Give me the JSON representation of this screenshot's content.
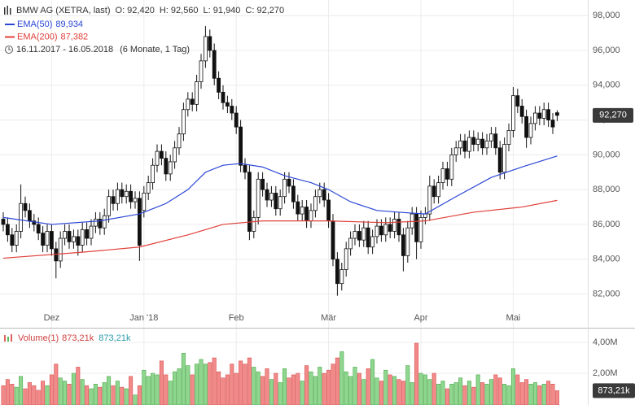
{
  "chart_data": {
    "type": "candlestick",
    "header": {
      "title": "BMW AG (XETRA, last)",
      "ohlc": [
        "O: 92,420",
        "H: 92,560",
        "L: 91,940",
        "C: 92,270"
      ],
      "range": "16.11.2017 - 16.05.2018",
      "period": "(6 Monate, 1 Tag)"
    },
    "xticks": [
      {
        "value": 11,
        "label": "Dez"
      },
      {
        "value": 32,
        "label": "Jan '18"
      },
      {
        "value": 53,
        "label": "Feb"
      },
      {
        "value": 74,
        "label": "Mär"
      },
      {
        "value": 95,
        "label": "Apr"
      },
      {
        "value": 116,
        "label": "Mai"
      }
    ],
    "open": [
      86.3,
      86.0,
      85.4,
      84.8,
      85.6,
      87.2,
      86.8,
      86.2,
      86.0,
      85.5,
      84.8,
      85.6,
      84.6,
      83.9,
      85.2,
      85.6,
      85.0,
      85.3,
      84.8,
      85.7,
      85.2,
      85.9,
      86.3,
      85.8,
      86.5,
      87.6,
      87.2,
      88.0,
      87.6,
      87.9,
      87.3,
      87.5,
      86.8,
      87.8,
      88.4,
      89.4,
      90.2,
      89.8,
      88.9,
      89.6,
      90.4,
      91.2,
      92.6,
      93.2,
      92.9,
      94.2,
      95.4,
      96.8,
      96.0,
      94.4,
      93.6,
      93.0,
      92.8,
      92.4,
      91.6,
      89.4,
      89.0,
      85.6,
      86.4,
      88.6,
      88.0,
      87.4,
      87.8,
      86.9,
      87.6,
      88.6,
      88.2,
      87.3,
      86.6,
      87.0,
      86.2,
      86.8,
      87.6,
      88.0,
      87.4,
      86.2,
      84.0,
      82.6,
      83.4,
      84.6,
      85.2,
      85.6,
      85.1,
      85.8,
      84.7,
      85.3,
      85.9,
      85.4,
      86.0,
      85.6,
      86.3,
      85.4,
      84.2,
      85.8,
      86.6,
      85.0,
      86.4,
      86.6,
      88.2,
      87.6,
      88.4,
      89.2,
      88.6,
      90.0,
      90.4,
      90.8,
      90.2,
      91.0,
      90.6,
      90.9,
      90.4,
      90.8,
      91.2,
      90.4,
      89.0,
      90.6,
      91.4,
      93.4,
      92.8,
      92.2,
      91.0,
      91.8,
      92.4,
      92.1,
      92.6,
      92.0,
      92.42
    ],
    "high": [
      86.7,
      86.4,
      85.8,
      86.0,
      88.3,
      87.6,
      87.2,
      86.6,
      86.4,
      85.9,
      86.0,
      86.0,
      85.0,
      85.6,
      86.0,
      86.0,
      85.7,
      85.7,
      86.1,
      86.1,
      86.3,
      86.7,
      86.7,
      86.9,
      88.0,
      88.0,
      88.4,
      88.4,
      88.3,
      88.3,
      87.9,
      87.9,
      88.2,
      88.8,
      89.8,
      90.6,
      90.6,
      90.2,
      90.0,
      90.8,
      91.6,
      93.0,
      93.6,
      93.6,
      94.6,
      95.8,
      97.4,
      97.2,
      96.4,
      94.8,
      94.0,
      93.4,
      93.2,
      92.8,
      92.0,
      89.8,
      89.4,
      86.8,
      89.0,
      89.0,
      88.4,
      88.2,
      88.2,
      88.0,
      89.0,
      89.0,
      88.6,
      87.7,
      87.4,
      87.4,
      87.2,
      88.0,
      88.4,
      88.4,
      87.8,
      86.6,
      84.4,
      83.8,
      85.0,
      85.6,
      86.0,
      86.0,
      86.2,
      86.2,
      85.7,
      86.3,
      86.3,
      86.4,
      86.4,
      86.7,
      86.7,
      85.8,
      86.2,
      87.0,
      87.0,
      86.8,
      87.0,
      88.8,
      88.6,
      88.8,
      89.6,
      89.6,
      90.4,
      90.8,
      91.2,
      91.2,
      91.4,
      91.4,
      91.3,
      91.3,
      91.2,
      91.6,
      91.6,
      90.8,
      91.0,
      91.8,
      93.9,
      93.8,
      93.2,
      92.6,
      92.2,
      92.8,
      92.8,
      93.0,
      93.0,
      92.4,
      92.56
    ],
    "low": [
      85.6,
      85.0,
      84.4,
      84.4,
      85.2,
      86.4,
      85.8,
      85.6,
      85.1,
      84.4,
      84.4,
      84.2,
      82.9,
      83.5,
      84.8,
      84.6,
      84.6,
      84.2,
      84.4,
      84.8,
      84.8,
      85.5,
      85.4,
      85.4,
      86.1,
      86.8,
      86.8,
      87.2,
      87.2,
      86.9,
      86.9,
      83.9,
      86.4,
      87.4,
      88.0,
      89.0,
      89.4,
      88.5,
      88.5,
      89.2,
      90.0,
      90.8,
      92.2,
      92.5,
      92.5,
      93.8,
      95.0,
      95.6,
      94.0,
      93.2,
      92.6,
      92.4,
      92.0,
      91.2,
      89.0,
      88.6,
      85.1,
      85.2,
      86.0,
      87.6,
      87.0,
      87.0,
      86.5,
      86.5,
      87.2,
      87.8,
      86.9,
      86.2,
      86.2,
      85.8,
      85.8,
      86.4,
      87.2,
      87.0,
      85.8,
      83.6,
      81.9,
      82.2,
      83.0,
      84.2,
      84.8,
      84.7,
      84.7,
      84.3,
      84.3,
      84.9,
      85.0,
      85.0,
      85.2,
      85.2,
      85.0,
      83.3,
      83.8,
      85.4,
      84.0,
      84.6,
      86.0,
      86.2,
      87.2,
      87.2,
      88.0,
      88.2,
      88.2,
      89.6,
      90.0,
      89.8,
      89.8,
      90.2,
      90.2,
      90.0,
      90.0,
      90.4,
      90.0,
      88.6,
      88.6,
      90.2,
      91.0,
      92.4,
      91.8,
      90.4,
      90.6,
      91.4,
      91.7,
      91.7,
      91.6,
      91.2,
      91.94
    ],
    "close": [
      86.0,
      85.4,
      84.8,
      85.6,
      87.2,
      86.8,
      86.2,
      86.0,
      85.5,
      84.8,
      85.6,
      84.6,
      83.9,
      85.2,
      85.6,
      85.0,
      85.3,
      84.8,
      85.7,
      85.2,
      85.9,
      86.3,
      85.8,
      86.5,
      87.6,
      87.2,
      88.0,
      87.6,
      87.9,
      87.3,
      87.5,
      84.8,
      87.8,
      88.4,
      89.4,
      90.2,
      89.8,
      88.9,
      89.6,
      90.4,
      91.2,
      92.6,
      93.2,
      92.9,
      94.2,
      95.4,
      96.8,
      96.0,
      94.4,
      93.6,
      93.0,
      92.8,
      92.4,
      91.6,
      89.4,
      89.0,
      85.6,
      86.4,
      88.6,
      88.0,
      87.4,
      87.8,
      86.9,
      87.6,
      88.6,
      88.2,
      87.3,
      86.6,
      87.0,
      86.2,
      86.8,
      87.6,
      88.0,
      87.4,
      86.2,
      84.0,
      82.6,
      83.4,
      84.6,
      85.2,
      85.6,
      85.1,
      85.8,
      84.7,
      85.3,
      85.9,
      85.4,
      86.0,
      85.6,
      86.3,
      85.4,
      84.2,
      85.8,
      86.6,
      85.0,
      86.4,
      86.6,
      88.2,
      87.6,
      88.4,
      89.2,
      88.6,
      90.0,
      90.4,
      90.8,
      90.2,
      91.0,
      90.6,
      90.9,
      90.4,
      90.8,
      91.2,
      90.4,
      89.0,
      90.6,
      91.4,
      93.4,
      92.8,
      92.2,
      91.0,
      91.8,
      92.4,
      92.1,
      92.6,
      92.0,
      91.6,
      92.27
    ],
    "ylim": [
      80.2,
      98.9
    ],
    "yticks": [
      {
        "value": 82,
        "label": "82,000"
      },
      {
        "value": 84,
        "label": "84,000"
      },
      {
        "value": 86,
        "label": "86,000"
      },
      {
        "value": 88,
        "label": "88,000"
      },
      {
        "value": 90,
        "label": "90,000"
      },
      {
        "value": 92,
        "label": "92,000"
      },
      {
        "value": 94,
        "label": "94,000"
      },
      {
        "value": 96,
        "label": "96,000"
      },
      {
        "value": 98,
        "label": "98,000"
      }
    ],
    "grid": true,
    "last_label": "92,270",
    "series": [
      {
        "name": "EMA(50)",
        "label": "89,934",
        "color": "#2b46d6",
        "x": [
          0,
          11,
          22,
          31,
          37,
          42,
          46,
          50,
          54,
          59,
          64,
          70,
          74,
          79,
          85,
          90,
          96,
          103,
          111,
          118,
          126
        ],
        "values": [
          86.4,
          86.0,
          86.2,
          86.6,
          87.2,
          88.0,
          89.0,
          89.4,
          89.5,
          89.3,
          88.8,
          88.4,
          88.0,
          87.3,
          86.8,
          86.7,
          86.6,
          87.6,
          88.7,
          89.3,
          89.934
        ]
      },
      {
        "name": "EMA(200)",
        "label": "87,382",
        "color": "#e0403a",
        "x": [
          0,
          18,
          31,
          42,
          50,
          59,
          74,
          87,
          96,
          107,
          118,
          126
        ],
        "values": [
          84.06,
          84.4,
          84.7,
          85.4,
          86.0,
          86.2,
          86.2,
          86.1,
          86.2,
          86.7,
          87.0,
          87.382
        ]
      }
    ],
    "volume": {
      "name": "Volume(1)",
      "labels": [
        "873,21k",
        "873,21k"
      ],
      "last_label": "873,21k",
      "ylim": [
        0,
        4.9
      ],
      "yticks": [
        {
          "value": 2,
          "label": "2,00M"
        },
        {
          "value": 4,
          "label": "4,00M"
        }
      ],
      "values": [
        1.2,
        1.6,
        1.3,
        1.1,
        1.8,
        1.0,
        1.4,
        1.2,
        0.9,
        1.5,
        1.2,
        1.9,
        2.6,
        1.7,
        1.5,
        1.3,
        2.0,
        2.4,
        1.6,
        1.2,
        1.0,
        1.3,
        1.1,
        1.4,
        1.8,
        1.2,
        1.5,
        1.1,
        1.0,
        1.8,
        0.6,
        1.2,
        2.2,
        1.8,
        2.0,
        1.9,
        2.8,
        1.9,
        1.5,
        2.1,
        2.3,
        3.3,
        2.5,
        1.9,
        2.6,
        2.9,
        2.6,
        2.7,
        3.0,
        2.1,
        1.7,
        1.9,
        2.6,
        2.0,
        2.8,
        2.6,
        3.0,
        2.4,
        2.1,
        1.8,
        2.3,
        1.6,
        2.0,
        1.4,
        2.3,
        1.7,
        1.9,
        2.0,
        1.5,
        2.5,
        2.1,
        1.8,
        2.4,
        2.0,
        2.2,
        2.6,
        3.0,
        3.4,
        2.1,
        1.8,
        2.4,
        2.0,
        1.6,
        2.3,
        2.9,
        1.7,
        1.5,
        2.2,
        1.9,
        1.8,
        1.6,
        1.5,
        2.5,
        1.4,
        3.95,
        2.0,
        1.9,
        1.6,
        2.0,
        1.3,
        1.5,
        1.0,
        1.3,
        1.4,
        1.7,
        1.2,
        1.5,
        1.1,
        1.9,
        1.4,
        1.3,
        1.6,
        1.9,
        1.7,
        1.3,
        1.2,
        2.3,
        1.9,
        1.4,
        1.6,
        1.3,
        1.4,
        1.2,
        1.3,
        1.5,
        1.3,
        0.87321
      ]
    }
  }
}
